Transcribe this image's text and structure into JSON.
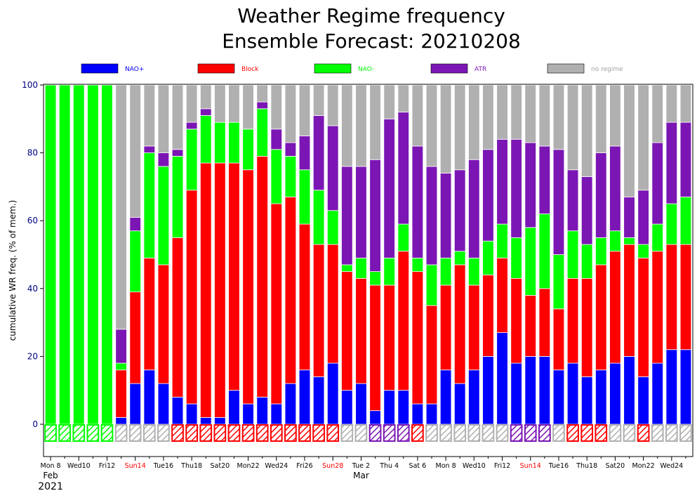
{
  "chart_data": {
    "type": "bar",
    "stacked": true,
    "title": "Weather Regime frequency",
    "subtitle": "Ensemble Forecast: 20210208",
    "ylabel": "cumulative WR freq. (% of mem.)",
    "ylim": [
      -10,
      100
    ],
    "yticks": [
      0,
      20,
      40,
      60,
      80,
      100
    ],
    "legend_position": "top",
    "grid": false,
    "categories": [
      "Mon 8",
      "",
      "Wed10",
      "",
      "Fri12",
      "",
      "Sun14",
      "",
      "Tue16",
      "",
      "Thu18",
      "",
      "Sat20",
      "",
      "Mon22",
      "",
      "Wed24",
      "",
      "Fri26",
      "",
      "Sun28",
      "",
      "Tue 2",
      "",
      "Thu 4",
      "",
      "Sat 6",
      "",
      "Mon 8",
      "",
      "Wed10",
      "",
      "Fri12",
      "",
      "Sun14",
      "",
      "Tue16",
      "",
      "Thu18",
      "",
      "Sat20",
      "",
      "Mon22",
      "",
      "Wed24",
      ""
    ],
    "tick_labels": [
      {
        "index": 0,
        "text": "Mon 8",
        "color": "#000000"
      },
      {
        "index": 2,
        "text": "Wed10",
        "color": "#000000"
      },
      {
        "index": 4,
        "text": "Fri12",
        "color": "#000000"
      },
      {
        "index": 6,
        "text": "Sun14",
        "color": "#ff0000"
      },
      {
        "index": 8,
        "text": "Tue16",
        "color": "#000000"
      },
      {
        "index": 10,
        "text": "Thu18",
        "color": "#000000"
      },
      {
        "index": 12,
        "text": "Sat20",
        "color": "#000000"
      },
      {
        "index": 14,
        "text": "Mon22",
        "color": "#000000"
      },
      {
        "index": 16,
        "text": "Wed24",
        "color": "#000000"
      },
      {
        "index": 18,
        "text": "Fri26",
        "color": "#000000"
      },
      {
        "index": 20,
        "text": "Sun28",
        "color": "#ff0000"
      },
      {
        "index": 22,
        "text": "Tue 2",
        "color": "#000000"
      },
      {
        "index": 24,
        "text": "Thu 4",
        "color": "#000000"
      },
      {
        "index": 26,
        "text": "Sat 6",
        "color": "#000000"
      },
      {
        "index": 28,
        "text": "Mon 8",
        "color": "#000000"
      },
      {
        "index": 30,
        "text": "Wed10",
        "color": "#000000"
      },
      {
        "index": 32,
        "text": "Fri12",
        "color": "#000000"
      },
      {
        "index": 34,
        "text": "Sun14",
        "color": "#ff0000"
      },
      {
        "index": 36,
        "text": "Tue16",
        "color": "#000000"
      },
      {
        "index": 38,
        "text": "Thu18",
        "color": "#000000"
      },
      {
        "index": 40,
        "text": "Sat20",
        "color": "#000000"
      },
      {
        "index": 42,
        "text": "Mon22",
        "color": "#000000"
      },
      {
        "index": 44,
        "text": "Wed24",
        "color": "#000000"
      }
    ],
    "month_labels": [
      {
        "index": 0,
        "text": "Feb"
      },
      {
        "index": 22,
        "text": "Mar"
      }
    ],
    "year_label": "2021",
    "series": [
      {
        "name": "NAO+",
        "color": "#0000ff",
        "values": [
          0,
          0,
          0,
          0,
          0,
          2,
          12,
          16,
          12,
          8,
          6,
          2,
          2,
          10,
          6,
          8,
          6,
          12,
          16,
          14,
          18,
          10,
          12,
          4,
          10,
          10,
          6,
          6,
          16,
          12,
          16,
          20,
          27,
          18,
          20,
          20,
          16,
          18,
          14,
          16,
          18,
          20,
          14,
          18,
          22,
          22
        ]
      },
      {
        "name": "Block",
        "color": "#ff0000",
        "values": [
          0,
          0,
          0,
          0,
          0,
          14,
          27,
          33,
          35,
          47,
          63,
          75,
          75,
          67,
          69,
          71,
          59,
          55,
          43,
          39,
          35,
          35,
          31,
          37,
          31,
          41,
          39,
          29,
          25,
          35,
          25,
          24,
          22,
          25,
          18,
          20,
          18,
          25,
          29,
          31,
          33,
          33,
          35,
          33,
          31,
          31
        ]
      },
      {
        "name": "NAO-",
        "color": "#00ff00",
        "values": [
          100,
          100,
          100,
          100,
          100,
          2,
          18,
          31,
          29,
          24,
          18,
          14,
          12,
          12,
          12,
          14,
          16,
          12,
          16,
          16,
          10,
          2,
          6,
          4,
          8,
          8,
          4,
          12,
          8,
          4,
          8,
          10,
          10,
          12,
          20,
          22,
          16,
          14,
          10,
          8,
          6,
          2,
          4,
          8,
          12,
          14
        ]
      },
      {
        "name": "ATR",
        "color": "#7b16b4",
        "values": [
          0,
          0,
          0,
          0,
          0,
          10,
          4,
          2,
          4,
          2,
          2,
          2,
          0,
          0,
          0,
          2,
          6,
          4,
          10,
          22,
          25,
          29,
          27,
          33,
          41,
          33,
          33,
          29,
          25,
          24,
          29,
          27,
          25,
          29,
          25,
          20,
          31,
          18,
          20,
          25,
          25,
          12,
          16,
          24,
          24,
          22
        ]
      },
      {
        "name": "no regime",
        "color": "#b0b0b0",
        "values": [
          0,
          0,
          0,
          0,
          0,
          72,
          39,
          18,
          20,
          19,
          11,
          7,
          11,
          11,
          13,
          5,
          13,
          17,
          15,
          9,
          12,
          24,
          24,
          22,
          10,
          8,
          18,
          24,
          26,
          25,
          22,
          19,
          16,
          16,
          17,
          18,
          19,
          25,
          27,
          20,
          18,
          33,
          31,
          17,
          11,
          11
        ]
      }
    ],
    "regime_strip": {
      "description_colors": {
        "NAO+": "#0000ff",
        "Block": "#ff0000",
        "NAO-": "#00ff00",
        "ATR": "#7b16b4",
        "no regime": "#b0b0b0"
      },
      "values": [
        "NAO-",
        "NAO-",
        "NAO-",
        "NAO-",
        "NAO-",
        "no regime",
        "no regime",
        "no regime",
        "no regime",
        "Block",
        "Block",
        "Block",
        "Block",
        "Block",
        "Block",
        "Block",
        "Block",
        "Block",
        "Block",
        "Block",
        "Block",
        "no regime",
        "no regime",
        "ATR",
        "ATR",
        "ATR",
        "Block",
        "no regime",
        "no regime",
        "no regime",
        "no regime",
        "no regime",
        "no regime",
        "ATR",
        "ATR",
        "ATR",
        "no regime",
        "Block",
        "Block",
        "Block",
        "no regime",
        "no regime",
        "Block",
        "no regime",
        "no regime",
        "no regime"
      ]
    }
  }
}
